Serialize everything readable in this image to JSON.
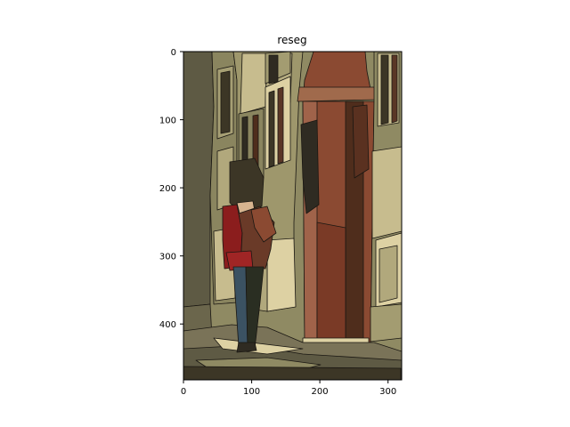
{
  "figure": {
    "title": "reseg"
  },
  "image": {
    "description_palette": {
      "wall_dark": "#5e5a44",
      "wall_mid": "#8f8a63",
      "wall_light": "#c7bc8e",
      "stone_pale": "#ddd1a3",
      "brick_red": "#8b4a32",
      "brick_dark": "#4f2d1c",
      "shadow": "#2f2b22",
      "ground": "#7a7358",
      "coat_red": "#8b1d1d",
      "jacket_brown": "#6a3a28",
      "jeans_blue": "#3b5262",
      "hair_dark": "#3c3626",
      "skin": "#d7b48f",
      "outline": "#1a1712"
    }
  },
  "axes": {
    "x_ticks": [
      "0",
      "100",
      "200",
      "300"
    ],
    "y_ticks": [
      "0",
      "100",
      "200",
      "300",
      "400"
    ],
    "x_range": [
      0,
      320
    ],
    "y_range": [
      0,
      480
    ]
  }
}
